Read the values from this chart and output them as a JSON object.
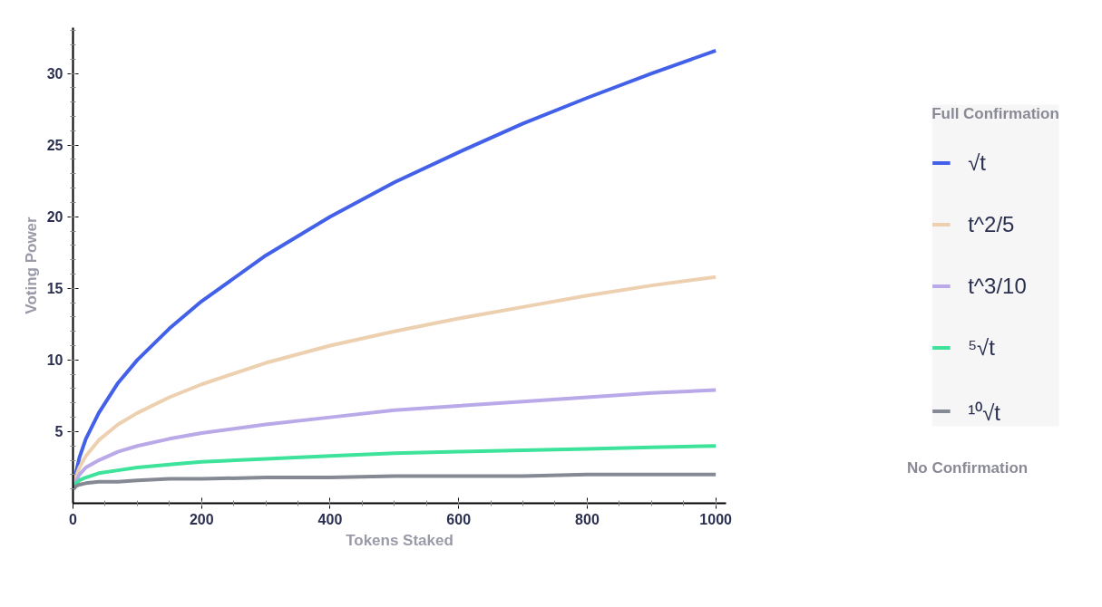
{
  "chart_data": {
    "type": "line",
    "xlabel": "Tokens Staked",
    "ylabel": "Voting Power",
    "legend_title": "Full Confirmation",
    "annotations": [
      "No Confirmation"
    ],
    "x": [
      1,
      5,
      10,
      20,
      40,
      70,
      100,
      150,
      200,
      300,
      400,
      500,
      600,
      700,
      800,
      900,
      1000
    ],
    "series": [
      {
        "name": "√t",
        "color": "#4361e8",
        "values": [
          1,
          2.2,
          3.2,
          4.5,
          6.3,
          8.4,
          10,
          12.2,
          14.1,
          17.3,
          20,
          22.4,
          24.5,
          26.5,
          28.3,
          30,
          31.6
        ]
      },
      {
        "name": "t^2/5",
        "color": "#ecd0b0",
        "values": [
          1,
          1.9,
          2.5,
          3.3,
          4.4,
          5.5,
          6.3,
          7.4,
          8.3,
          9.8,
          11,
          12,
          12.9,
          13.7,
          14.5,
          15.2,
          15.8
        ]
      },
      {
        "name": "t^3/10",
        "color": "#b9a9e8",
        "values": [
          1,
          1.6,
          2,
          2.5,
          3,
          3.6,
          4,
          4.5,
          4.9,
          5.5,
          6,
          6.5,
          6.8,
          7.1,
          7.4,
          7.7,
          7.9
        ]
      },
      {
        "name": "⁵√t",
        "color": "#3de39a",
        "values": [
          1,
          1.4,
          1.6,
          1.8,
          2.1,
          2.3,
          2.5,
          2.7,
          2.9,
          3.1,
          3.3,
          3.5,
          3.6,
          3.7,
          3.8,
          3.9,
          4
        ]
      },
      {
        "name": "¹⁰√t",
        "color": "#858994",
        "values": [
          1,
          1.2,
          1.3,
          1.4,
          1.5,
          1.5,
          1.6,
          1.7,
          1.7,
          1.8,
          1.8,
          1.9,
          1.9,
          1.9,
          2,
          2,
          2
        ]
      }
    ],
    "xlim": [
      0,
      1016
    ],
    "ylim": [
      0,
      33.2
    ],
    "xticks": [
      0,
      200,
      400,
      600,
      800,
      1000
    ],
    "yticks": [
      5,
      10,
      15,
      20,
      25,
      30
    ],
    "grid": false,
    "legend": "right",
    "marker": "none",
    "line_style": "solid"
  }
}
